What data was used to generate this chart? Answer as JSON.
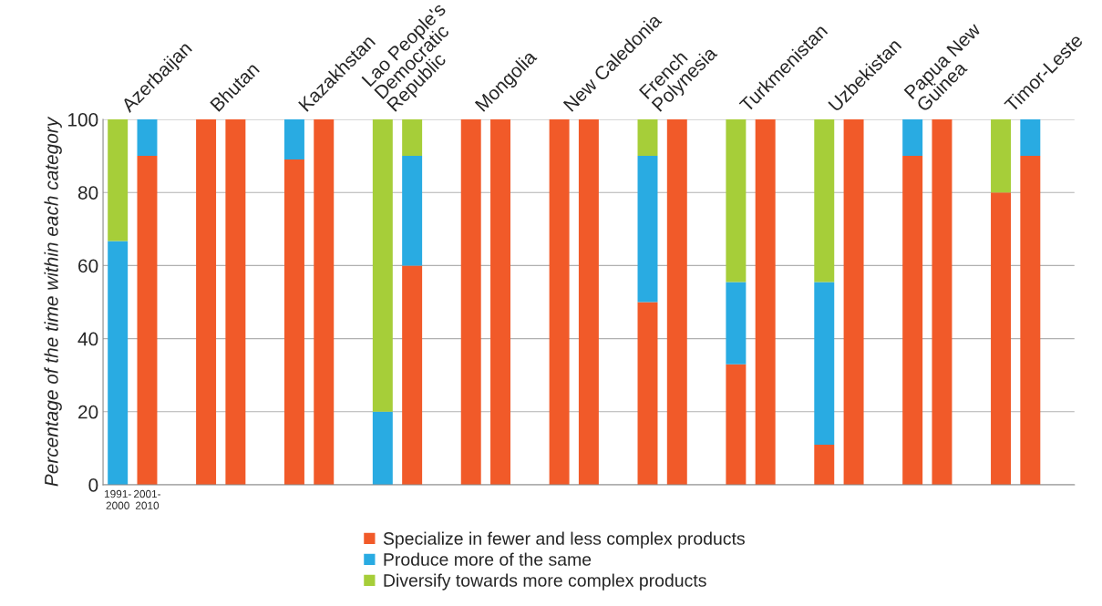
{
  "chart_data": {
    "type": "bar",
    "stacked": true,
    "ylabel": "Percentage of the time within each category",
    "categories": [
      "1991-\n2000",
      "2001-\n2010",
      null,
      null,
      null,
      null,
      null,
      null,
      null,
      null,
      null,
      null,
      null,
      null,
      null,
      null,
      null,
      null,
      null,
      null,
      null,
      null,
      null,
      null,
      null,
      null,
      null,
      null,
      null,
      null,
      null,
      null,
      null
    ],
    "annotations": [
      "Azerbaijan",
      "Bhutan",
      "Kazakhstan",
      "Lao People's\nDemocratic\nRepublic",
      "Mongolia",
      "New Caledonia",
      "French\nPolynesia",
      "Turkmenistan",
      "Uzbekistan",
      "Papua New\nGuinea",
      "Timor-Leste"
    ],
    "series": [
      {
        "name": "Specialize in fewer and less complex products",
        "color": "#f15a29",
        "values": [
          0,
          90,
          null,
          100,
          100,
          null,
          89,
          100,
          null,
          0,
          60,
          null,
          100,
          100,
          null,
          100,
          100,
          null,
          50,
          100,
          null,
          33,
          100,
          null,
          11,
          100,
          null,
          90,
          100,
          null,
          80,
          90,
          null
        ]
      },
      {
        "name": "Produce more of the same",
        "color": "#29abe2",
        "values": [
          66.7,
          10,
          null,
          0,
          0,
          null,
          11,
          0,
          null,
          20,
          30,
          null,
          0,
          0,
          null,
          0,
          0,
          null,
          40,
          0,
          null,
          22.5,
          0,
          null,
          44.5,
          0,
          null,
          10,
          0,
          null,
          0,
          10,
          null
        ]
      },
      {
        "name": "Diversify towards more complex products",
        "color": "#a6ce39",
        "values": [
          33.3,
          0,
          null,
          0,
          0,
          null,
          0,
          0,
          null,
          80,
          10,
          null,
          0,
          0,
          null,
          0,
          0,
          null,
          10,
          0,
          null,
          44.5,
          0,
          null,
          44.5,
          0,
          null,
          0,
          0,
          null,
          20,
          0,
          null
        ]
      }
    ],
    "ylim": [
      0,
      100
    ],
    "yticks": [
      0,
      20,
      40,
      60,
      80,
      100
    ],
    "grid": "y",
    "legend": "bottom"
  }
}
